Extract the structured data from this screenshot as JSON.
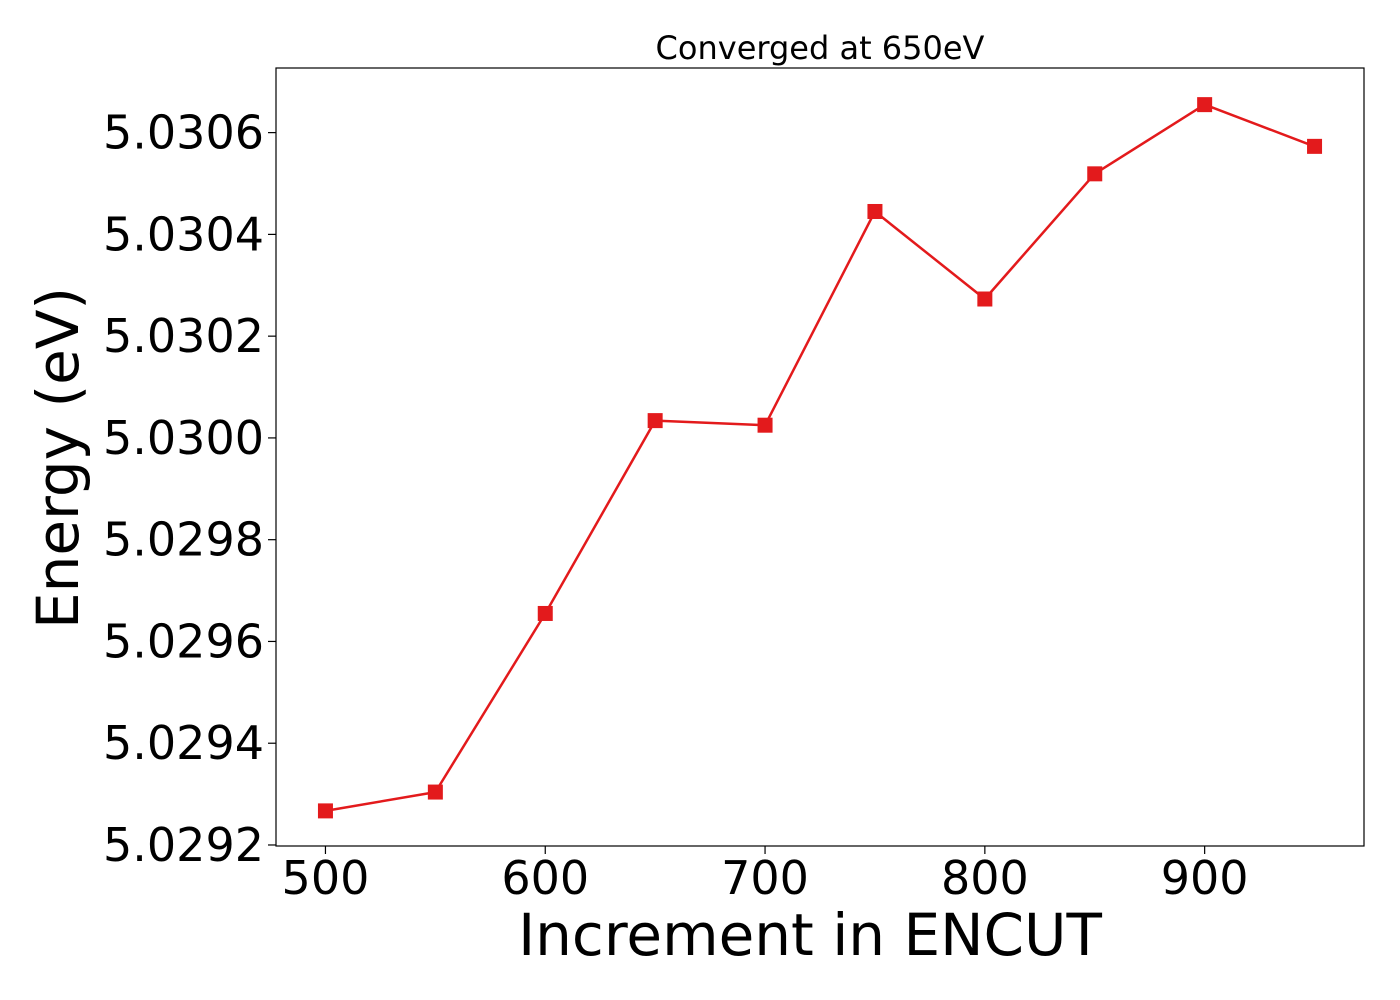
{
  "chart_data": {
    "type": "line",
    "title": "Converged at 650eV",
    "xlabel": "Increment in ENCUT",
    "ylabel": "Energy (eV)",
    "x": [
      500,
      550,
      600,
      650,
      700,
      750,
      800,
      850,
      900,
      950
    ],
    "series": [
      {
        "values": [
          5.029267,
          5.029304,
          5.029655,
          5.030034,
          5.030025,
          5.030445,
          5.030273,
          5.030519,
          5.030655,
          5.030573
        ],
        "color": "#e31a1c",
        "marker": "square"
      }
    ],
    "xticks": [
      500,
      600,
      700,
      800,
      900
    ],
    "xtick_labels": [
      "500",
      "600",
      "700",
      "800",
      "900"
    ],
    "yticks": [
      5.0292,
      5.0294,
      5.0296,
      5.0298,
      5.03,
      5.0302,
      5.0304,
      5.0306
    ],
    "ytick_labels": [
      "5.0292",
      "5.0294",
      "5.0296",
      "5.0298",
      "5.0300",
      "5.0302",
      "5.0304",
      "5.0306"
    ],
    "xlim": [
      477.5,
      972.5
    ],
    "ylim": [
      5.029198,
      5.030727
    ],
    "grid": false,
    "legend": "none"
  }
}
